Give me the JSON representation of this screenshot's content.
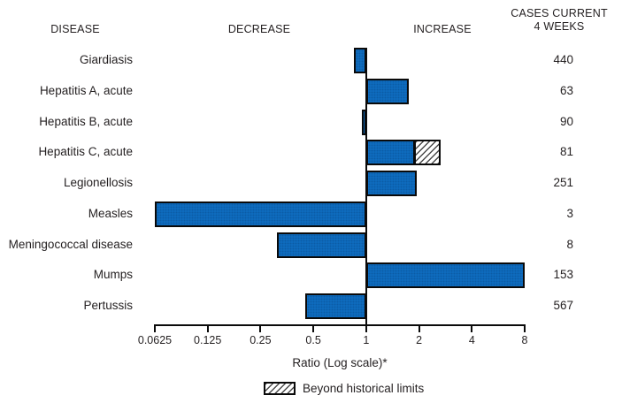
{
  "header": {
    "disease": "DISEASE",
    "decrease": "DECREASE",
    "increase": "INCREASE",
    "cases": "CASES CURRENT\n4 WEEKS"
  },
  "chart_data": {
    "type": "bar",
    "orientation": "horizontal",
    "scale": "log2",
    "baseline_ratio": 1,
    "xlabel": "Ratio (Log scale)*",
    "x_ticks": [
      {
        "value": 0.0625,
        "label": "0.0625"
      },
      {
        "value": 0.125,
        "label": "0.125"
      },
      {
        "value": 0.25,
        "label": "0.25"
      },
      {
        "value": 0.5,
        "label": "0.5"
      },
      {
        "value": 1,
        "label": "1"
      },
      {
        "value": 2,
        "label": "2"
      },
      {
        "value": 4,
        "label": "4"
      },
      {
        "value": 8,
        "label": "8"
      }
    ],
    "xlim": [
      0.0625,
      8
    ],
    "legend": [
      {
        "label": "Beyond historical limits",
        "style": "hatched"
      }
    ],
    "rows": [
      {
        "disease": "Giardiasis",
        "ratio": 0.85,
        "cases": 440,
        "beyond_limit": false
      },
      {
        "disease": "Hepatitis A, acute",
        "ratio": 1.75,
        "cases": 63,
        "beyond_limit": false
      },
      {
        "disease": "Hepatitis B, acute",
        "ratio": 0.95,
        "cases": 90,
        "beyond_limit": false
      },
      {
        "disease": "Hepatitis C, acute",
        "ratio": 1.9,
        "cases": 81,
        "beyond_limit": true,
        "beyond_ratio": 2.65
      },
      {
        "disease": "Legionellosis",
        "ratio": 1.95,
        "cases": 251,
        "beyond_limit": false
      },
      {
        "disease": "Measles",
        "ratio": 0.0625,
        "cases": 3,
        "beyond_limit": false
      },
      {
        "disease": "Meningococcal disease",
        "ratio": 0.31,
        "cases": 8,
        "beyond_limit": false
      },
      {
        "disease": "Mumps",
        "ratio": 8,
        "cases": 153,
        "beyond_limit": false
      },
      {
        "disease": "Pertussis",
        "ratio": 0.45,
        "cases": 567,
        "beyond_limit": false
      }
    ],
    "colors": {
      "bar_fill": "#0f6ec2",
      "bar_border": "#0a0a0a",
      "text": "#231f20",
      "background": "#ffffff"
    }
  }
}
